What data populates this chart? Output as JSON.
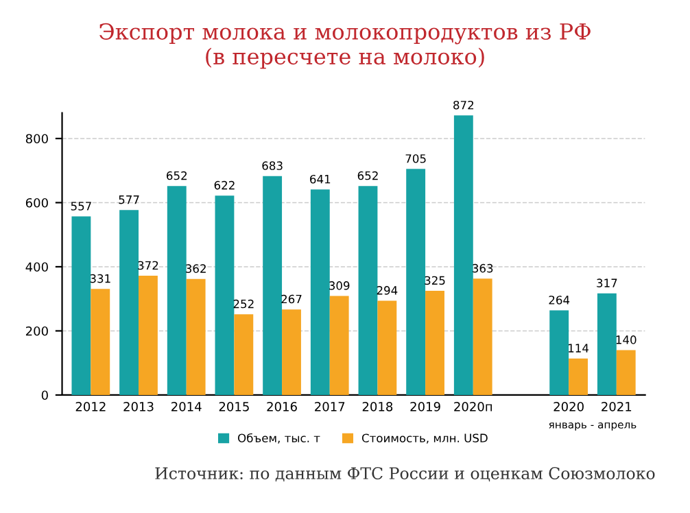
{
  "chart_data": {
    "type": "bar",
    "title": "Экспорт молока и молокопродуктов из РФ\n(в пересчете на молоко)",
    "categories": [
      "2012",
      "2013",
      "2014",
      "2015",
      "2016",
      "2017",
      "2018",
      "2019",
      "2020п",
      null,
      "2020",
      "2021"
    ],
    "series": [
      {
        "name": "Объем, тыс. т",
        "color": "#17a2a4",
        "values": [
          557,
          577,
          652,
          622,
          683,
          641,
          652,
          705,
          872,
          null,
          264,
          317
        ]
      },
      {
        "name": "Стоимость, млн. USD",
        "color": "#f6a623",
        "values": [
          331,
          372,
          362,
          252,
          267,
          309,
          294,
          325,
          363,
          null,
          114,
          140
        ]
      }
    ],
    "ylim": [
      0,
      880
    ],
    "yticks": [
      0,
      200,
      400,
      600,
      800
    ],
    "grid": "y",
    "legend": "bottom",
    "data_labels": true,
    "annotations": [
      "январь - апрель",
      "Источник: по данным ФТС России и оценкам Союзмолоко"
    ]
  }
}
